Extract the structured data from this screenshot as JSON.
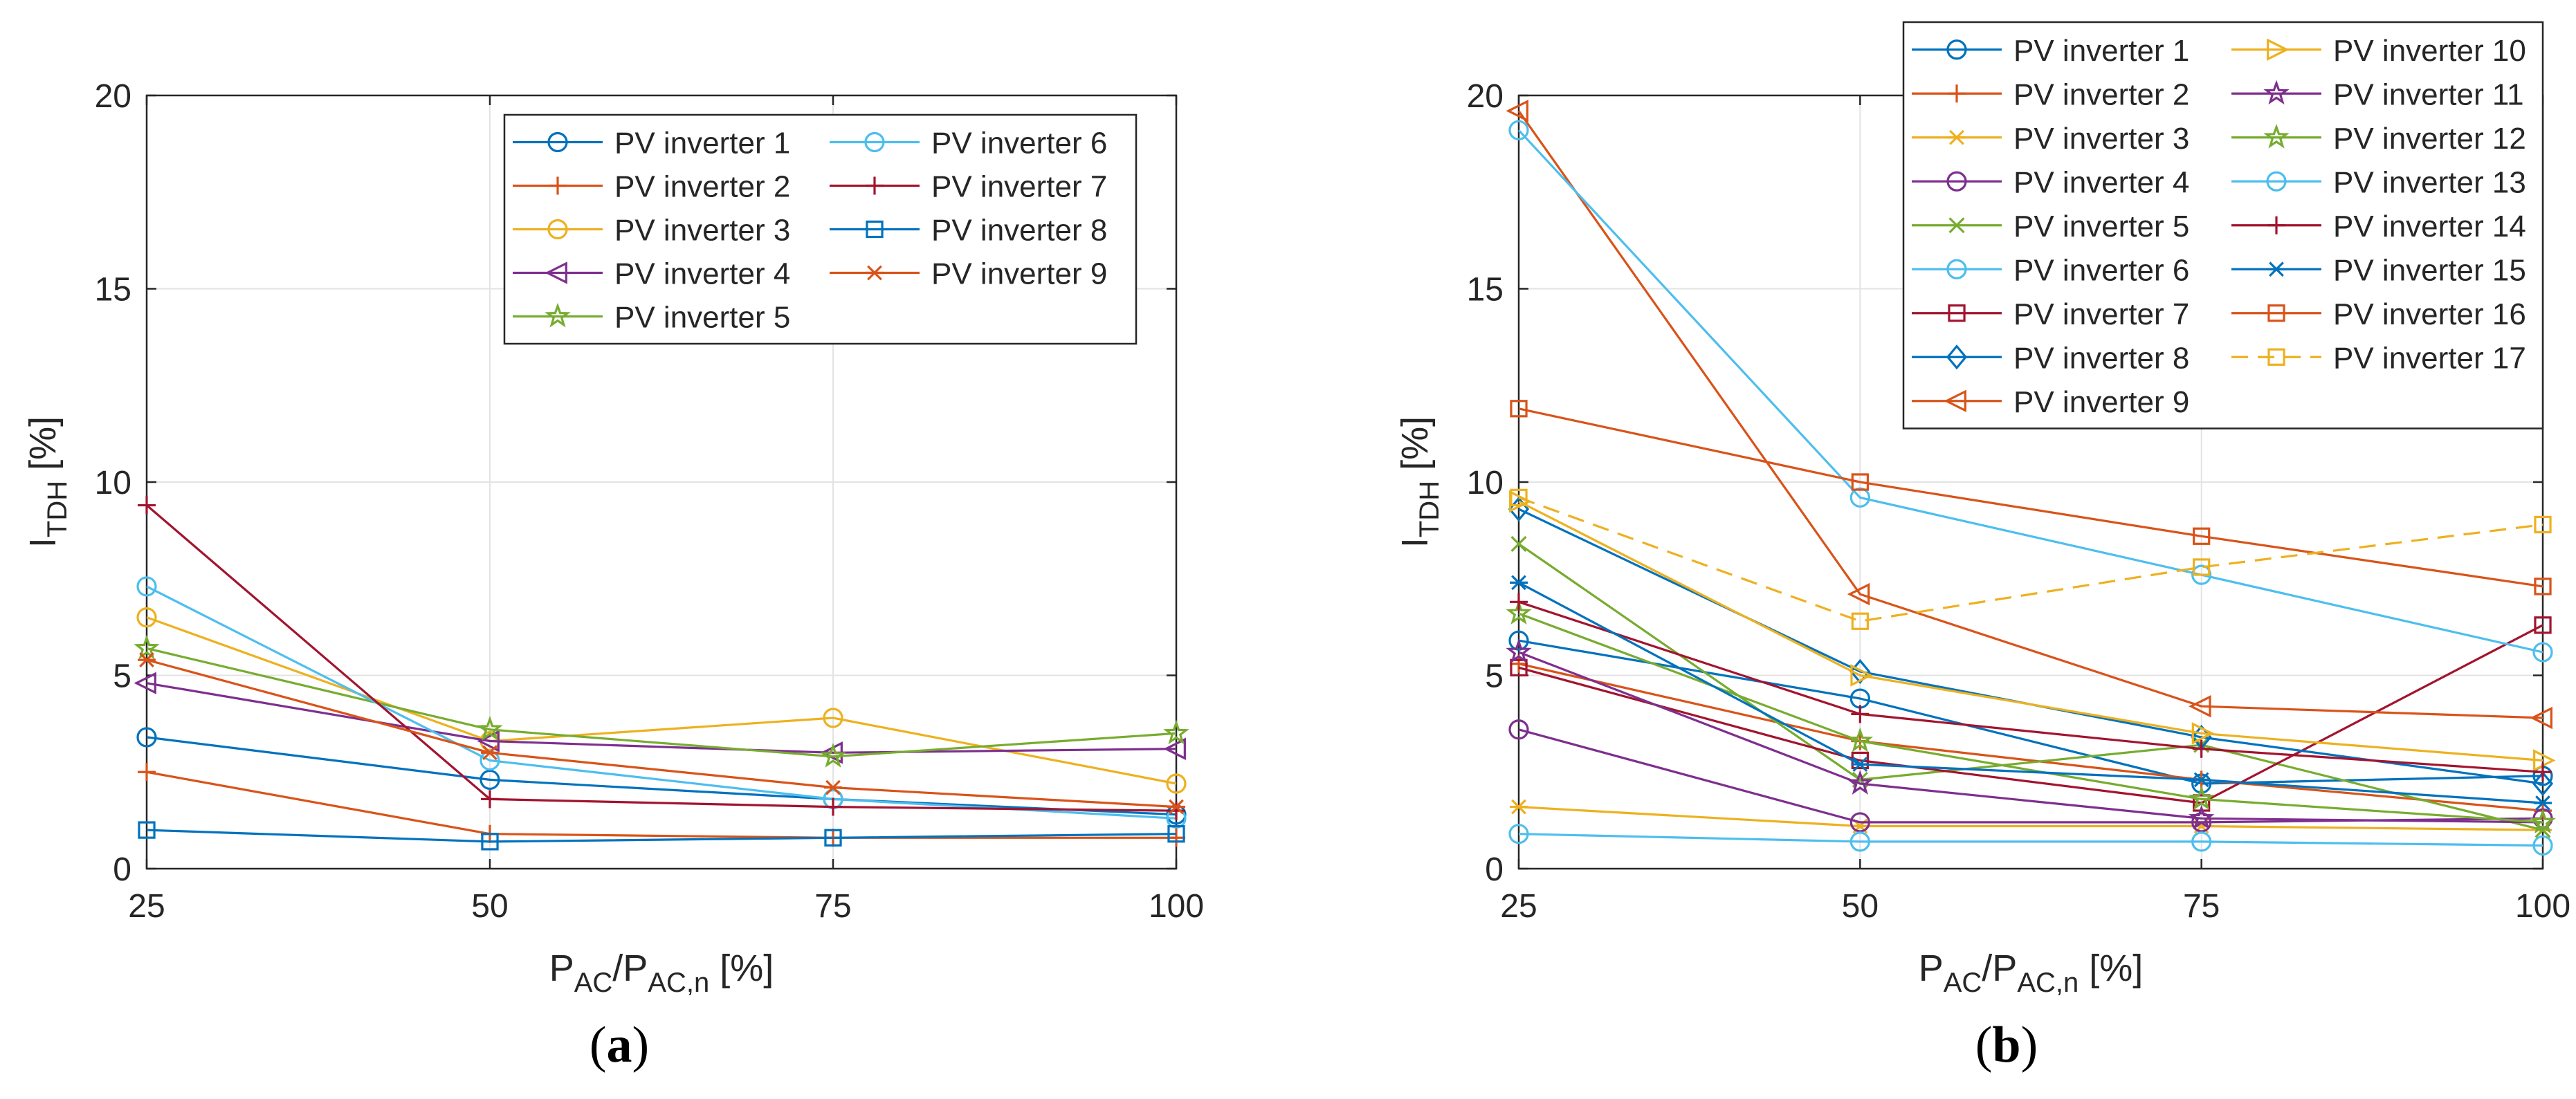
{
  "chart_data": [
    {
      "type": "line",
      "panel_label": "a",
      "x": [
        25,
        50,
        75,
        100
      ],
      "xlabel": {
        "main": "P",
        "sub1": "AC",
        "mid": "/P",
        "sub2": "AC,n",
        "unit": " [%]"
      },
      "ylabel": {
        "main": "I",
        "sub": "TDH",
        "unit": " [%]"
      },
      "xlim": [
        25,
        100
      ],
      "ylim": [
        0,
        20
      ],
      "xticks": [
        "25",
        "50",
        "75",
        "100"
      ],
      "yticks": [
        "0",
        "5",
        "10",
        "15",
        "20"
      ],
      "grid": true,
      "legend_position": "top-right",
      "legend_columns": 2,
      "series": [
        {
          "name": "PV inverter 1",
          "color": "#0072BD",
          "marker": "circle",
          "values": [
            3.4,
            2.3,
            1.8,
            1.4
          ]
        },
        {
          "name": "PV inverter 2",
          "color": "#D95319",
          "marker": "plus",
          "values": [
            2.5,
            0.9,
            0.8,
            0.8
          ]
        },
        {
          "name": "PV inverter 3",
          "color": "#EDB120",
          "marker": "circle",
          "values": [
            6.5,
            3.3,
            3.9,
            2.2
          ]
        },
        {
          "name": "PV inverter 4",
          "color": "#7E2F8E",
          "marker": "triangle-left",
          "values": [
            4.8,
            3.3,
            3.0,
            3.1
          ]
        },
        {
          "name": "PV inverter 5",
          "color": "#77AC30",
          "marker": "star",
          "values": [
            5.7,
            3.6,
            2.9,
            3.5
          ]
        },
        {
          "name": "PV inverter 6",
          "color": "#4DBEEE",
          "marker": "circle",
          "values": [
            7.3,
            2.8,
            1.8,
            1.3
          ]
        },
        {
          "name": "PV inverter 7",
          "color": "#A2142F",
          "marker": "plus",
          "values": [
            9.4,
            1.8,
            1.6,
            1.5
          ]
        },
        {
          "name": "PV inverter 8",
          "color": "#0072BD",
          "marker": "square",
          "values": [
            1.0,
            0.7,
            0.8,
            0.9
          ]
        },
        {
          "name": "PV inverter 9",
          "color": "#D95319",
          "marker": "asterisk",
          "values": [
            5.4,
            3.0,
            2.1,
            1.6
          ]
        }
      ]
    },
    {
      "type": "line",
      "panel_label": "b",
      "x": [
        25,
        50,
        75,
        100
      ],
      "xlabel": {
        "main": "P",
        "sub1": "AC",
        "mid": "/P",
        "sub2": "AC,n",
        "unit": " [%]"
      },
      "ylabel": {
        "main": "I",
        "sub": "TDH",
        "unit": " [%]"
      },
      "xlim": [
        25,
        100
      ],
      "ylim": [
        0,
        20
      ],
      "xticks": [
        "25",
        "50",
        "75",
        "100"
      ],
      "yticks": [
        "0",
        "5",
        "10",
        "15",
        "20"
      ],
      "grid": true,
      "legend_position": "top-right",
      "legend_columns": 2,
      "series": [
        {
          "name": "PV inverter 1",
          "color": "#0072BD",
          "marker": "circle",
          "values": [
            5.9,
            4.4,
            2.2,
            2.4
          ]
        },
        {
          "name": "PV inverter 2",
          "color": "#D95319",
          "marker": "plus",
          "values": [
            5.3,
            3.3,
            2.3,
            1.5
          ]
        },
        {
          "name": "PV inverter 3",
          "color": "#EDB120",
          "marker": "asterisk",
          "values": [
            1.6,
            1.1,
            1.1,
            1.0
          ]
        },
        {
          "name": "PV inverter 4",
          "color": "#7E2F8E",
          "marker": "circle",
          "values": [
            3.6,
            1.2,
            1.2,
            1.3
          ]
        },
        {
          "name": "PV inverter 5",
          "color": "#77AC30",
          "marker": "x",
          "values": [
            8.4,
            2.3,
            3.2,
            1.0
          ]
        },
        {
          "name": "PV inverter 6",
          "color": "#4DBEEE",
          "marker": "circle",
          "values": [
            0.9,
            0.7,
            0.7,
            0.6
          ]
        },
        {
          "name": "PV inverter 7",
          "color": "#A2142F",
          "marker": "square",
          "values": [
            5.2,
            2.8,
            1.7,
            6.3
          ]
        },
        {
          "name": "PV inverter 8",
          "color": "#0072BD",
          "marker": "diamond",
          "values": [
            9.3,
            5.1,
            3.4,
            2.2
          ]
        },
        {
          "name": "PV inverter 9",
          "color": "#D95319",
          "marker": "triangle-left",
          "values": [
            19.6,
            7.1,
            4.2,
            3.9
          ]
        },
        {
          "name": "PV inverter 10",
          "color": "#EDB120",
          "marker": "triangle-right",
          "values": [
            9.5,
            5.0,
            3.5,
            2.8
          ]
        },
        {
          "name": "PV inverter 11",
          "color": "#7E2F8E",
          "marker": "pentagram",
          "values": [
            5.6,
            2.2,
            1.3,
            1.2
          ]
        },
        {
          "name": "PV inverter 12",
          "color": "#77AC30",
          "marker": "star",
          "values": [
            6.6,
            3.3,
            1.8,
            1.2
          ]
        },
        {
          "name": "PV inverter 13",
          "color": "#4DBEEE",
          "marker": "circle",
          "values": [
            19.1,
            9.6,
            7.6,
            5.6
          ]
        },
        {
          "name": "PV inverter 14",
          "color": "#A2142F",
          "marker": "plus",
          "values": [
            6.9,
            4.0,
            3.1,
            2.5
          ]
        },
        {
          "name": "PV inverter 15",
          "color": "#0072BD",
          "marker": "asterisk",
          "values": [
            7.4,
            2.7,
            2.3,
            1.7
          ]
        },
        {
          "name": "PV inverter 16",
          "color": "#D95319",
          "marker": "square",
          "values": [
            11.9,
            10.0,
            8.6,
            7.3
          ]
        },
        {
          "name": "PV inverter 17",
          "color": "#EDB120",
          "marker": "square",
          "dashed": true,
          "values": [
            9.6,
            6.4,
            7.8,
            8.9
          ]
        }
      ]
    }
  ]
}
